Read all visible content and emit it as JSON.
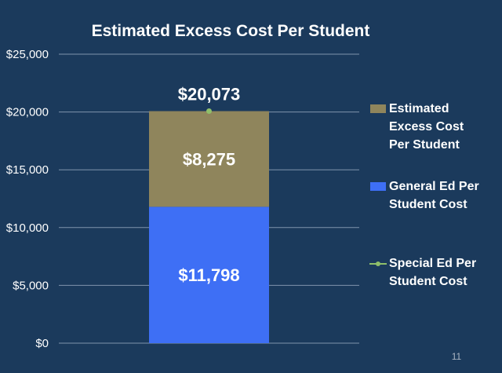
{
  "chart_data": {
    "type": "bar",
    "title": "Estimated Excess Cost Per Student",
    "categories": [
      ""
    ],
    "stacked": true,
    "ylim": [
      0,
      25000
    ],
    "yticks": [
      0,
      5000,
      10000,
      15000,
      20000,
      25000
    ],
    "ytick_labels": [
      "$0",
      "$5,000",
      "$10,000",
      "$15,000",
      "$20,000",
      "$25,000"
    ],
    "grid": true,
    "legend_placement": "right",
    "series": [
      {
        "name": "General Ed Per Student Cost",
        "legend_lines": [
          "General Ed Per",
          "Student Cost"
        ],
        "type": "bar",
        "values": [
          11798
        ],
        "value_labels": [
          "$11,798"
        ],
        "color": "#3e6ff5"
      },
      {
        "name": "Estimated Excess Cost Per Student",
        "legend_lines": [
          "Estimated",
          "Excess Cost",
          "Per Student"
        ],
        "type": "bar",
        "values": [
          8275
        ],
        "value_labels": [
          "$8,275"
        ],
        "color": "#8f855c"
      },
      {
        "name": "Special Ed Per Student Cost",
        "legend_lines": [
          "Special Ed Per",
          "Student Cost"
        ],
        "type": "line",
        "values": [
          20073
        ],
        "value_labels": [
          "$20,073"
        ],
        "color": "#8fbf6a"
      }
    ],
    "legend_order": [
      1,
      0,
      2
    ]
  },
  "page_number": "11"
}
